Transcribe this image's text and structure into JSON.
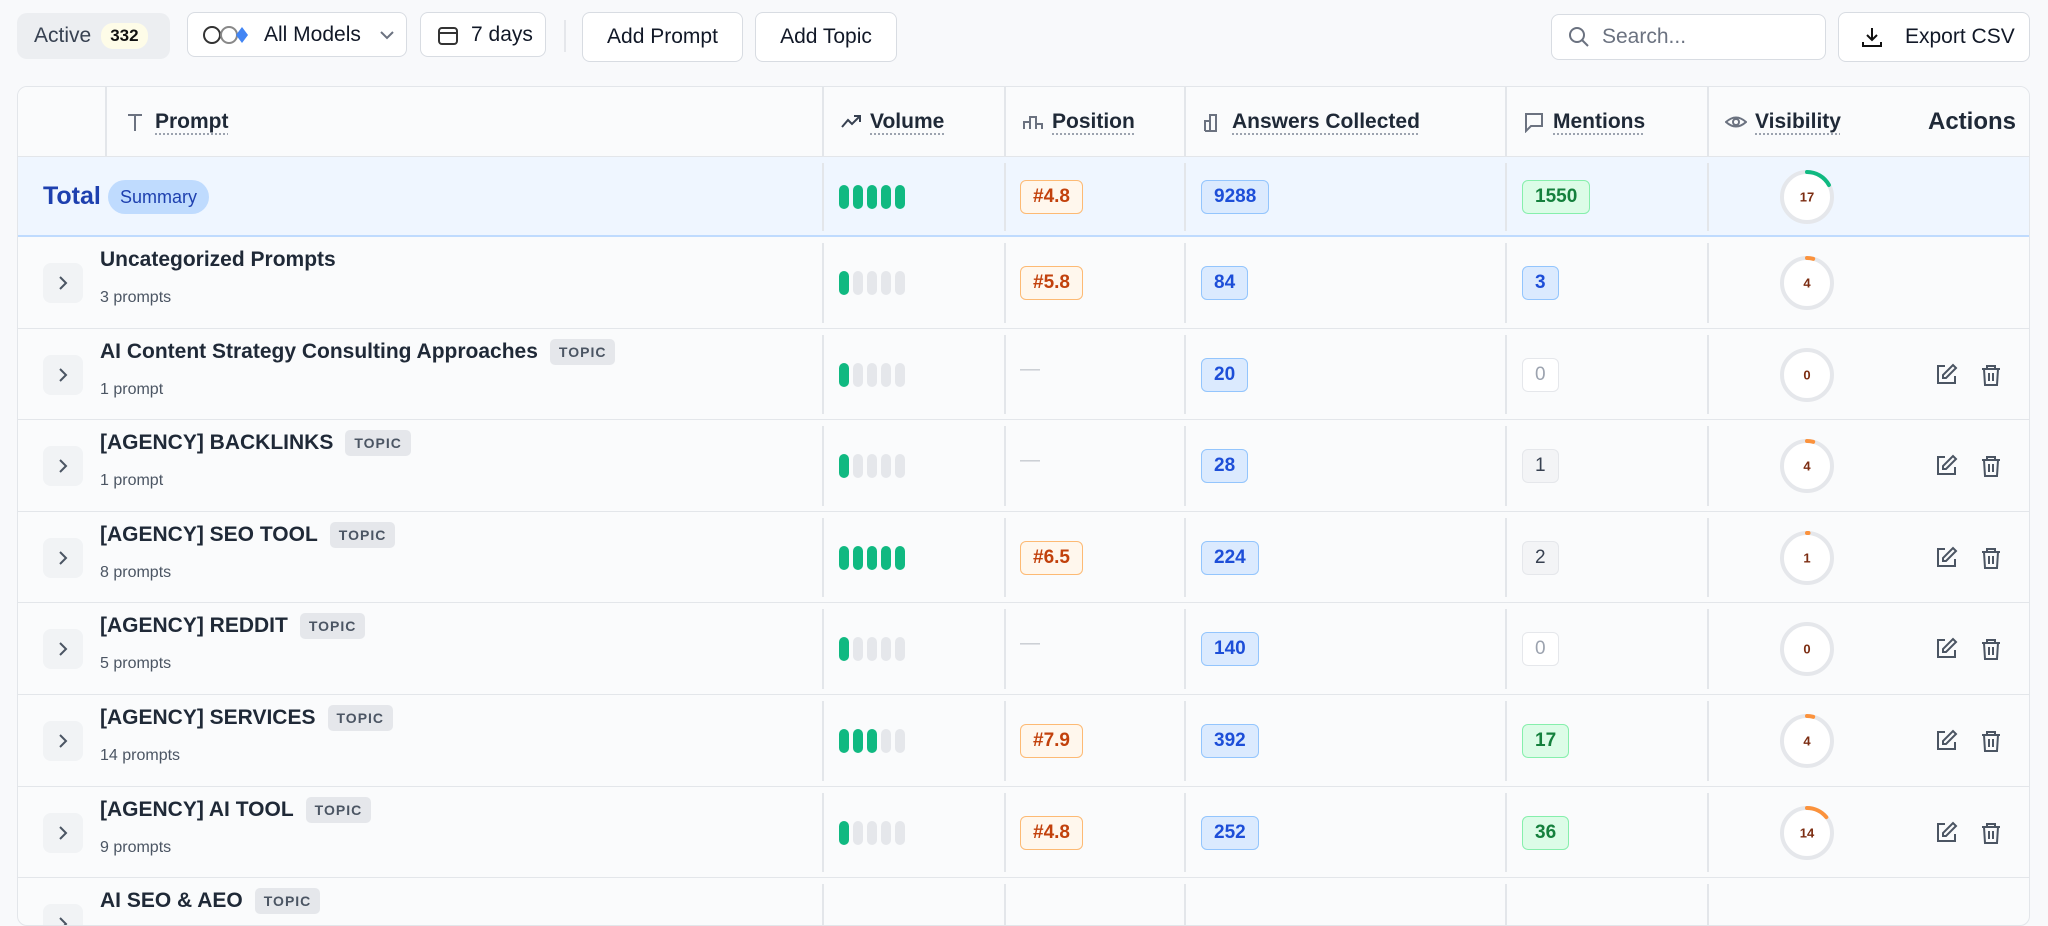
{
  "toolbar": {
    "active_label": "Active",
    "active_count": "332",
    "models": "All Models",
    "range": "7 days",
    "add_prompt": "Add Prompt",
    "add_topic": "Add Topic",
    "search_placeholder": "Search...",
    "export": "Export CSV"
  },
  "table": {
    "headers": [
      "Prompt",
      "Volume",
      "Position",
      "Answers Collected",
      "Mentions",
      "Visibility",
      "Actions"
    ],
    "total": {
      "label": "Total",
      "badge": "Summary",
      "volume": 5,
      "position": "#4.8",
      "answers": 9288,
      "mentions": 1550,
      "mentions_style": "green",
      "visibility": 17
    },
    "rows": [
      {
        "title": "Uncategorized Prompts",
        "subtitle": "3 prompts",
        "volume": 1,
        "position": "#5.8",
        "answers": 84,
        "mentions": 3,
        "mentions_style": "blue",
        "visibility": 4,
        "actions": false
      },
      {
        "title": "AI Content Strategy Consulting Approaches",
        "tag": "TOPIC",
        "subtitle": "1 prompt",
        "volume": 1,
        "position": "—",
        "answers": 20,
        "mentions": 0,
        "mentions_style": "muted",
        "visibility": 0,
        "actions": true
      },
      {
        "title": "[AGENCY] BACKLINKS",
        "tag": "TOPIC",
        "subtitle": "1 prompt",
        "volume": 1,
        "position": "—",
        "answers": 28,
        "mentions": 1,
        "mentions_style": "gray",
        "visibility": 4,
        "actions": true
      },
      {
        "title": "[AGENCY] SEO TOOL",
        "tag": "TOPIC",
        "subtitle": "8 prompts",
        "volume": 5,
        "position": "#6.5",
        "answers": 224,
        "mentions": 2,
        "mentions_style": "gray",
        "visibility": 1,
        "actions": true
      },
      {
        "title": "[AGENCY] REDDIT",
        "tag": "TOPIC",
        "subtitle": "5 prompts",
        "volume": 1,
        "position": "—",
        "answers": 140,
        "mentions": 0,
        "mentions_style": "muted",
        "visibility": 0,
        "actions": true
      },
      {
        "title": "[AGENCY] SERVICES",
        "tag": "TOPIC",
        "subtitle": "14 prompts",
        "volume": 3,
        "position": "#7.9",
        "answers": 392,
        "mentions": 17,
        "mentions_style": "green",
        "visibility": 4,
        "actions": true
      },
      {
        "title": "[AGENCY] AI TOOL",
        "tag": "TOPIC",
        "subtitle": "9 prompts",
        "volume": 1,
        "position": "#4.8",
        "answers": 252,
        "mentions": 36,
        "mentions_style": "green",
        "visibility": 14,
        "actions": true
      },
      {
        "title": "AI SEO & AEO",
        "tag": "TOPIC"
      }
    ]
  }
}
